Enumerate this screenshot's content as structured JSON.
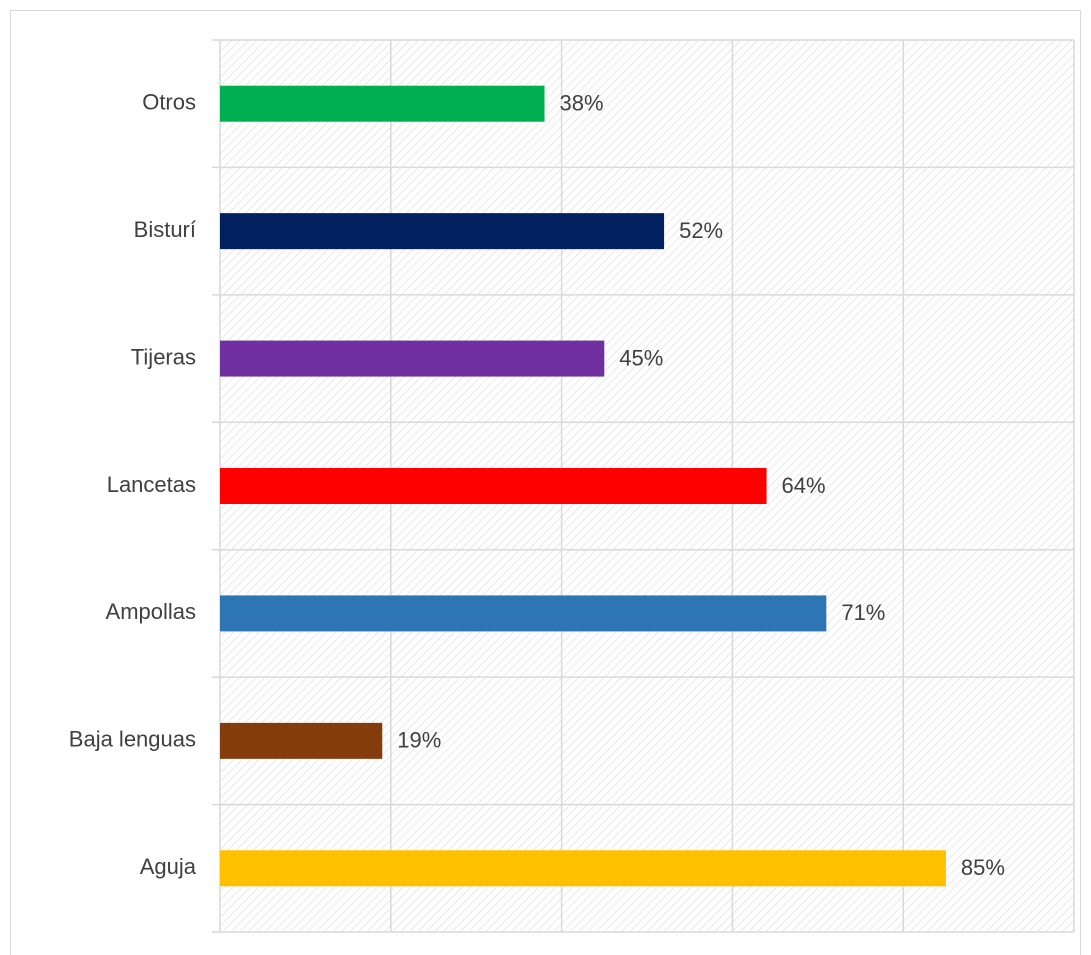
{
  "chart_data": {
    "type": "bar",
    "orientation": "horizontal",
    "categories": [
      "Otros",
      "Bisturí",
      "Tijeras",
      "Lancetas",
      "Ampollas",
      "Baja lenguas",
      "Aguja"
    ],
    "values": [
      38,
      52,
      45,
      64,
      71,
      19,
      85
    ],
    "value_labels": [
      "38%",
      "52%",
      "45%",
      "64%",
      "71%",
      "19%",
      "85%"
    ],
    "colors": [
      "#00b050",
      "#002060",
      "#7030a0",
      "#ff0000",
      "#2e75b6",
      "#843c0c",
      "#ffc000"
    ],
    "xlim": [
      0,
      100
    ],
    "xticks": [
      0,
      20,
      40,
      60,
      80,
      100
    ],
    "grid": true
  }
}
